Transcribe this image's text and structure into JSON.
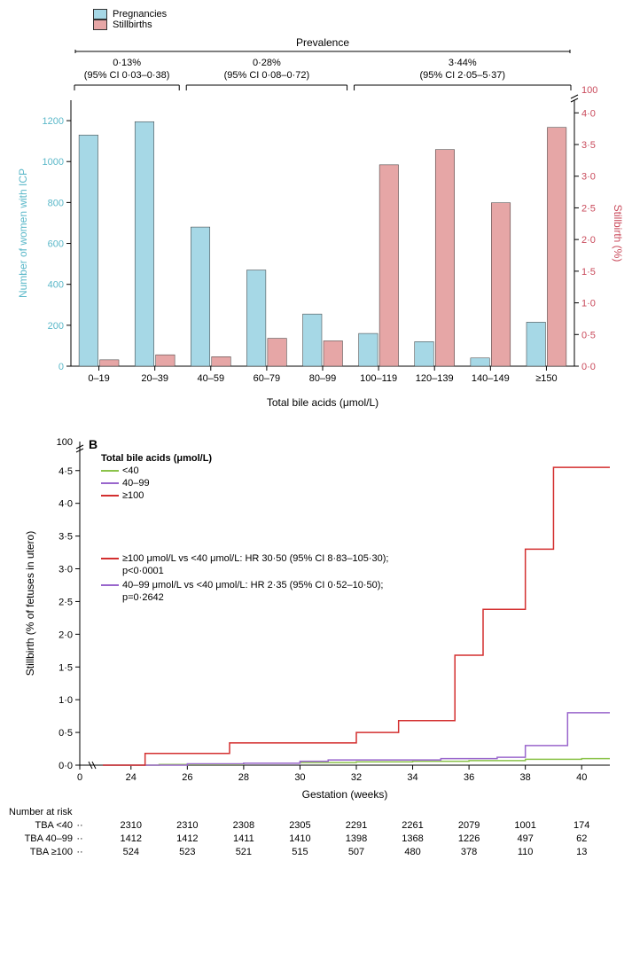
{
  "panelA": {
    "legend": [
      {
        "label": "Pregnancies",
        "color": "#a6d8e6",
        "border": "#333"
      },
      {
        "label": "Stillbirths",
        "color": "#e6a6a6",
        "border": "#333"
      }
    ],
    "prevalence_title": "Prevalence",
    "groups": [
      {
        "label": "0·13%",
        "ci": "(95% CI 0·03–0·38)",
        "span": [
          0,
          1
        ]
      },
      {
        "label": "0·28%",
        "ci": "(95% CI 0·08–0·72)",
        "span": [
          2,
          4
        ]
      },
      {
        "label": "3·44%",
        "ci": "(95% CI 2·05–5·37)",
        "span": [
          5,
          8
        ]
      }
    ],
    "xlabel": "Total bile acids (μmol/L)",
    "ylabel_left": "Number of women with ICP",
    "ylabel_right": "Stillbirth (%)",
    "left_color": "#5bb8c9",
    "right_color": "#c94a5b",
    "categories": [
      "0–19",
      "20–39",
      "40–59",
      "60–79",
      "80–99",
      "100–119",
      "120–139",
      "140–149",
      "≥150"
    ],
    "left_axis": {
      "min": 0,
      "max": 1300,
      "ticks": [
        0,
        200,
        400,
        600,
        800,
        1000,
        1200
      ]
    },
    "right_axis": {
      "min": 0,
      "max": 4.2,
      "ticks": [
        0,
        0.5,
        1.0,
        1.5,
        2.0,
        2.5,
        3.0,
        3.5,
        4.0
      ],
      "break_top": 100
    },
    "bars_left": [
      1130,
      1195,
      680,
      470,
      255,
      160,
      120,
      40,
      215
    ],
    "bars_right": [
      0.1,
      0.18,
      0.15,
      0.44,
      0.4,
      3.18,
      3.42,
      2.58,
      3.77
    ],
    "bar_colors": {
      "left": "#a6d8e6",
      "right": "#e6a6a6"
    }
  },
  "panelB": {
    "panel_label": "B",
    "legend_title": "Total bile acids (μmol/L)",
    "series": [
      {
        "label": "<40",
        "color": "#8bc34a"
      },
      {
        "label": "40–99",
        "color": "#9966cc"
      },
      {
        "label": "≥100",
        "color": "#d32f2f"
      }
    ],
    "hr_text": [
      {
        "color": "#d32f2f",
        "text": "≥100 μmol/L vs <40 μmol/L: HR 30·50 (95% CI 8·83–105·30);",
        "p": "p<0·0001"
      },
      {
        "color": "#9966cc",
        "text": "40–99 μmol/L vs <40 μmol/L: HR 2·35 (95% CI 0·52–10·50);",
        "p": "p=0·2642"
      }
    ],
    "ylabel": "Stillbirth (% of fetuses in utero)",
    "xlabel": "Gestation (weeks)",
    "y_axis": {
      "min": 0,
      "max": 4.7,
      "ticks_main": [
        0,
        0.5,
        1.0,
        1.5,
        2.0,
        2.5,
        3.0,
        3.5,
        4.0,
        4.5
      ],
      "break_top": 100
    },
    "x_axis": {
      "min": 23,
      "max": 41,
      "ticks": [
        24,
        26,
        28,
        30,
        32,
        34,
        36,
        38,
        40
      ]
    },
    "steps": {
      "lt40": [
        [
          23,
          0
        ],
        [
          25,
          0.01
        ],
        [
          28,
          0.03
        ],
        [
          30,
          0.04
        ],
        [
          32,
          0.05
        ],
        [
          34,
          0.06
        ],
        [
          36,
          0.07
        ],
        [
          38,
          0.09
        ],
        [
          40,
          0.1
        ],
        [
          41,
          0.1
        ]
      ],
      "40_99": [
        [
          23,
          0
        ],
        [
          26,
          0.02
        ],
        [
          28,
          0.03
        ],
        [
          30,
          0.06
        ],
        [
          31,
          0.08
        ],
        [
          33,
          0.08
        ],
        [
          35,
          0.1
        ],
        [
          37,
          0.12
        ],
        [
          38,
          0.3
        ],
        [
          39.5,
          0.8
        ],
        [
          41,
          0.8
        ]
      ],
      "ge100": [
        [
          23,
          0
        ],
        [
          24.5,
          0.18
        ],
        [
          25,
          0.18
        ],
        [
          27.5,
          0.34
        ],
        [
          32,
          0.5
        ],
        [
          33.5,
          0.68
        ],
        [
          35.5,
          1.68
        ],
        [
          36.5,
          2.38
        ],
        [
          38,
          3.3
        ],
        [
          39,
          4.55
        ],
        [
          41,
          4.55
        ]
      ]
    },
    "risk_title": "Number at risk",
    "risk_rows": [
      {
        "label": "TBA <40",
        "vals": [
          "··",
          "2310",
          "2310",
          "2308",
          "2305",
          "2291",
          "2261",
          "2079",
          "1001",
          "174"
        ]
      },
      {
        "label": "TBA 40–99",
        "vals": [
          "··",
          "1412",
          "1412",
          "1411",
          "1410",
          "1398",
          "1368",
          "1226",
          "497",
          "62"
        ]
      },
      {
        "label": "TBA ≥100",
        "vals": [
          "··",
          "524",
          "523",
          "521",
          "515",
          "507",
          "480",
          "378",
          "110",
          "13"
        ]
      }
    ]
  }
}
